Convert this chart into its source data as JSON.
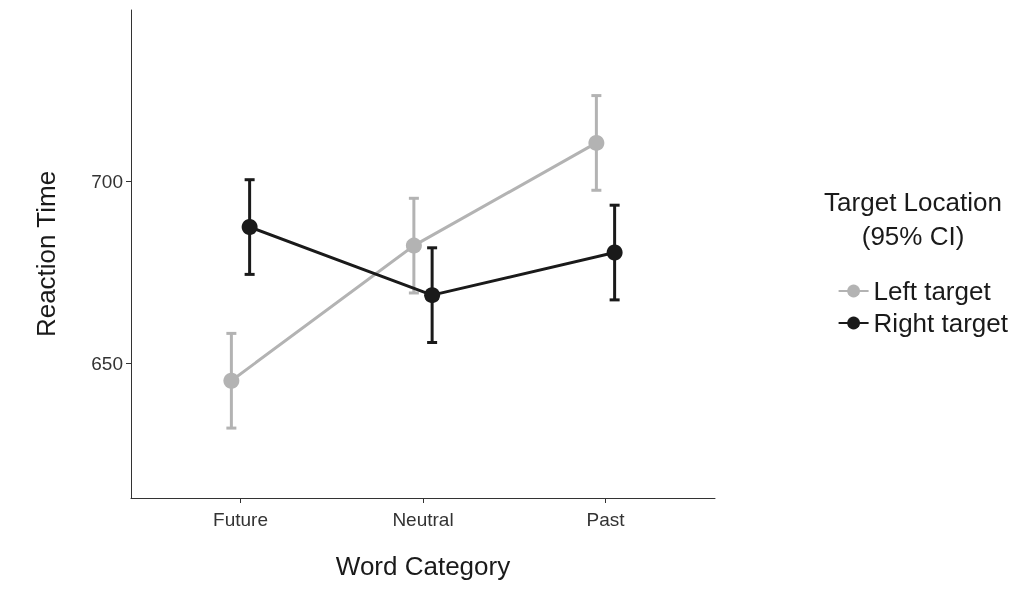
{
  "chart_data": {
    "type": "line",
    "xlabel": "Word Category",
    "ylabel": "Reaction Time",
    "legend_title": "Target Location\n(95% CI)",
    "categories": [
      "Future",
      "Neutral",
      "Past"
    ],
    "series": [
      {
        "name": "Left target",
        "color": "#b3b3b3",
        "values": [
          645.2,
          682.3,
          710.5
        ],
        "errors": [
          13,
          13,
          13
        ]
      },
      {
        "name": "Right target",
        "color": "#1a1a1a",
        "values": [
          687.4,
          668.7,
          680.4
        ],
        "errors": [
          13,
          13,
          13
        ]
      }
    ],
    "ylim": [
      613,
      747
    ],
    "yticks": [
      650,
      700
    ],
    "grid": false,
    "legend": "right",
    "marker": "circle",
    "line_style": "solid"
  }
}
